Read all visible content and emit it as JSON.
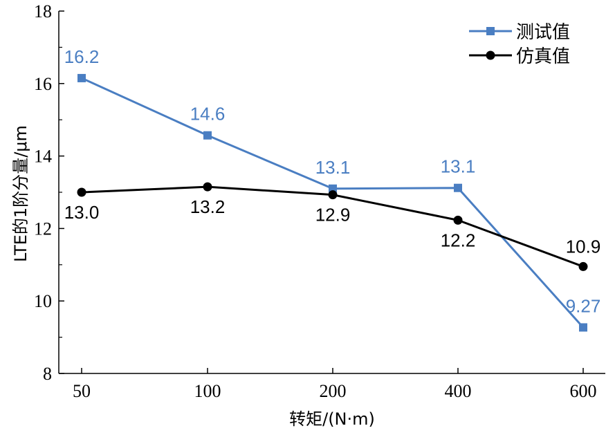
{
  "chart_data": {
    "type": "line",
    "categories": [
      "50",
      "100",
      "200",
      "400",
      "600"
    ],
    "xlabel": "转矩/(N·m)",
    "ylabel": "LTE的1阶分量/μm",
    "ylim": [
      8,
      18
    ],
    "yticks": [
      8,
      10,
      12,
      14,
      16,
      18
    ],
    "grid": false,
    "legend": "top-right",
    "series": [
      {
        "name": "测试值",
        "color": "#4a7ec2",
        "marker": "square",
        "values": [
          16.15,
          14.57,
          13.1,
          13.12,
          9.27
        ],
        "labels": [
          "16.2",
          "14.6",
          "13.1",
          "13.1",
          "9.27"
        ],
        "label_position": "above"
      },
      {
        "name": "仿真值",
        "color": "#000000",
        "marker": "circle",
        "values": [
          13.0,
          13.15,
          12.93,
          12.23,
          10.95
        ],
        "labels": [
          "13.0",
          "13.2",
          "12.9",
          "12.2",
          "10.9"
        ],
        "label_position": "below"
      }
    ]
  }
}
